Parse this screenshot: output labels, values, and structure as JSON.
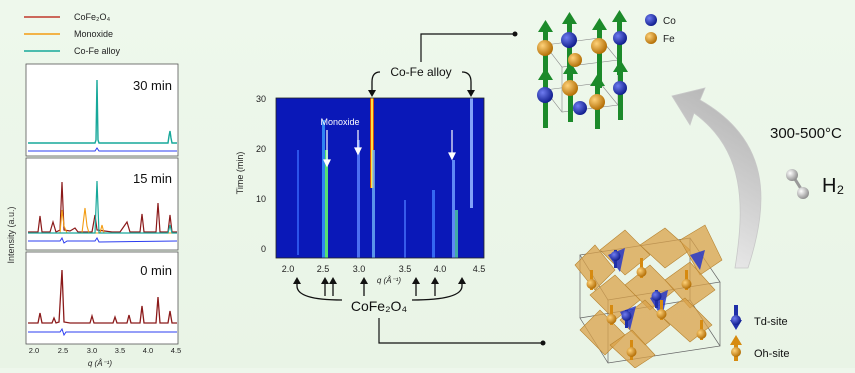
{
  "legend": {
    "items": [
      {
        "label": "CoFe₂O₄",
        "color": "#c0392b"
      },
      {
        "label": "Monoxide",
        "color": "#f39c12"
      },
      {
        "label": "Co-Fe alloy",
        "color": "#17a89a"
      }
    ]
  },
  "xrd": {
    "ylabel": "Intensity (a.u.)",
    "xlabel": "q (Å⁻¹)",
    "xticks": [
      "2.0",
      "2.5",
      "3.0",
      "3.5",
      "4.0",
      "4.5"
    ],
    "panels": [
      {
        "label": "30 min"
      },
      {
        "label": "15 min"
      },
      {
        "label": "0 min"
      }
    ]
  },
  "heatmap": {
    "ylabel": "Time (min)",
    "xlabel": "q (Å⁻¹)",
    "yticks": [
      "0",
      "10",
      "20",
      "30"
    ],
    "xticks": [
      "2.0",
      "2.5",
      "3.0",
      "3.5",
      "4.0",
      "4.5"
    ],
    "annotations": {
      "alloy": "Co-Fe alloy",
      "monoxide": "Monoxide",
      "spinel": "CoFe₂O₄"
    }
  },
  "structures": {
    "alloy_legend": [
      {
        "label": "Co",
        "color": "#1f2fa8"
      },
      {
        "label": "Fe",
        "color": "#d68a10"
      }
    ],
    "spinel_legend": [
      {
        "label": "Td-site",
        "color": "#1f2fa8"
      },
      {
        "label": "Oh-site",
        "color": "#d68a10"
      }
    ]
  },
  "reaction": {
    "temperature": "300-500°C",
    "reagent": "H₂"
  }
}
